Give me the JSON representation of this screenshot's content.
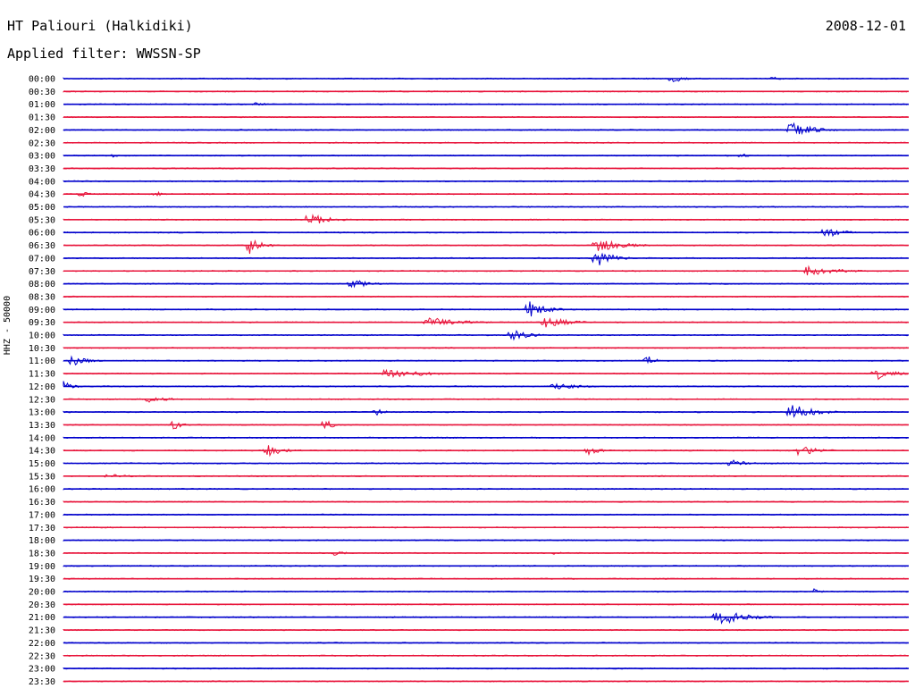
{
  "header": {
    "station": "HT Paliouri (Halkidiki)",
    "date": "2008-12-01",
    "filter": "Applied filter: WWSSN-SP"
  },
  "chart_data": {
    "type": "line",
    "title": "HT Paliouri (Halkidiki)",
    "subtitle": "Applied filter: WWSSN-SP",
    "ylabel": "HHZ - 50000",
    "colors": [
      "#0000cc",
      "#e8163c"
    ],
    "rows": [
      "00:00",
      "00:30",
      "01:00",
      "01:30",
      "02:00",
      "02:30",
      "03:00",
      "03:30",
      "04:00",
      "04:30",
      "05:00",
      "05:30",
      "06:00",
      "06:30",
      "07:00",
      "07:30",
      "08:00",
      "08:30",
      "09:00",
      "09:30",
      "10:00",
      "10:30",
      "11:00",
      "11:30",
      "12:00",
      "12:30",
      "13:00",
      "13:30",
      "14:00",
      "14:30",
      "15:00",
      "15:30",
      "16:00",
      "16:30",
      "17:00",
      "17:30",
      "18:00",
      "18:30",
      "19:00",
      "19:30",
      "20:00",
      "20:30",
      "21:00",
      "21:30",
      "22:00",
      "22:30",
      "23:00",
      "23:30"
    ],
    "events": [
      {
        "row": 0,
        "t": 0.72,
        "amp": 5,
        "dur": 0.03
      },
      {
        "row": 0,
        "t": 0.84,
        "amp": 3,
        "dur": 0.02
      },
      {
        "row": 2,
        "t": 0.23,
        "amp": 3,
        "dur": 0.02
      },
      {
        "row": 4,
        "t": 0.86,
        "amp": 10,
        "dur": 0.05
      },
      {
        "row": 6,
        "t": 0.06,
        "amp": 3,
        "dur": 0.01
      },
      {
        "row": 6,
        "t": 0.8,
        "amp": 3,
        "dur": 0.02
      },
      {
        "row": 9,
        "t": 0.02,
        "amp": 4,
        "dur": 0.02
      },
      {
        "row": 9,
        "t": 0.11,
        "amp": 3,
        "dur": 0.02
      },
      {
        "row": 11,
        "t": 0.29,
        "amp": 9,
        "dur": 0.04
      },
      {
        "row": 12,
        "t": 0.9,
        "amp": 7,
        "dur": 0.04
      },
      {
        "row": 13,
        "t": 0.22,
        "amp": 10,
        "dur": 0.03
      },
      {
        "row": 13,
        "t": 0.63,
        "amp": 8,
        "dur": 0.06
      },
      {
        "row": 14,
        "t": 0.63,
        "amp": 10,
        "dur": 0.04
      },
      {
        "row": 15,
        "t": 0.88,
        "amp": 8,
        "dur": 0.06
      },
      {
        "row": 16,
        "t": 0.34,
        "amp": 6,
        "dur": 0.04
      },
      {
        "row": 18,
        "t": 0.55,
        "amp": 10,
        "dur": 0.04
      },
      {
        "row": 19,
        "t": 0.43,
        "amp": 6,
        "dur": 0.08
      },
      {
        "row": 19,
        "t": 0.57,
        "amp": 8,
        "dur": 0.05
      },
      {
        "row": 20,
        "t": 0.53,
        "amp": 7,
        "dur": 0.04
      },
      {
        "row": 22,
        "t": 0.01,
        "amp": 9,
        "dur": 0.03
      },
      {
        "row": 22,
        "t": 0.69,
        "amp": 6,
        "dur": 0.03
      },
      {
        "row": 23,
        "t": 0.38,
        "amp": 7,
        "dur": 0.08
      },
      {
        "row": 23,
        "t": 0.96,
        "amp": 8,
        "dur": 0.04
      },
      {
        "row": 24,
        "t": 0.0,
        "amp": 8,
        "dur": 0.02
      },
      {
        "row": 24,
        "t": 0.58,
        "amp": 4,
        "dur": 0.06
      },
      {
        "row": 25,
        "t": 0.1,
        "amp": 4,
        "dur": 0.05
      },
      {
        "row": 26,
        "t": 0.37,
        "amp": 4,
        "dur": 0.02
      },
      {
        "row": 26,
        "t": 0.86,
        "amp": 9,
        "dur": 0.06
      },
      {
        "row": 27,
        "t": 0.13,
        "amp": 6,
        "dur": 0.02
      },
      {
        "row": 27,
        "t": 0.31,
        "amp": 6,
        "dur": 0.02
      },
      {
        "row": 29,
        "t": 0.24,
        "amp": 7,
        "dur": 0.04
      },
      {
        "row": 29,
        "t": 0.62,
        "amp": 6,
        "dur": 0.03
      },
      {
        "row": 29,
        "t": 0.87,
        "amp": 8,
        "dur": 0.04
      },
      {
        "row": 30,
        "t": 0.79,
        "amp": 4,
        "dur": 0.04
      },
      {
        "row": 31,
        "t": 0.05,
        "amp": 3,
        "dur": 0.06
      },
      {
        "row": 37,
        "t": 0.32,
        "amp": 3,
        "dur": 0.03
      },
      {
        "row": 37,
        "t": 0.58,
        "amp": 3,
        "dur": 0.02
      },
      {
        "row": 40,
        "t": 0.89,
        "amp": 5,
        "dur": 0.01
      },
      {
        "row": 42,
        "t": 0.77,
        "amp": 12,
        "dur": 0.06
      }
    ]
  }
}
